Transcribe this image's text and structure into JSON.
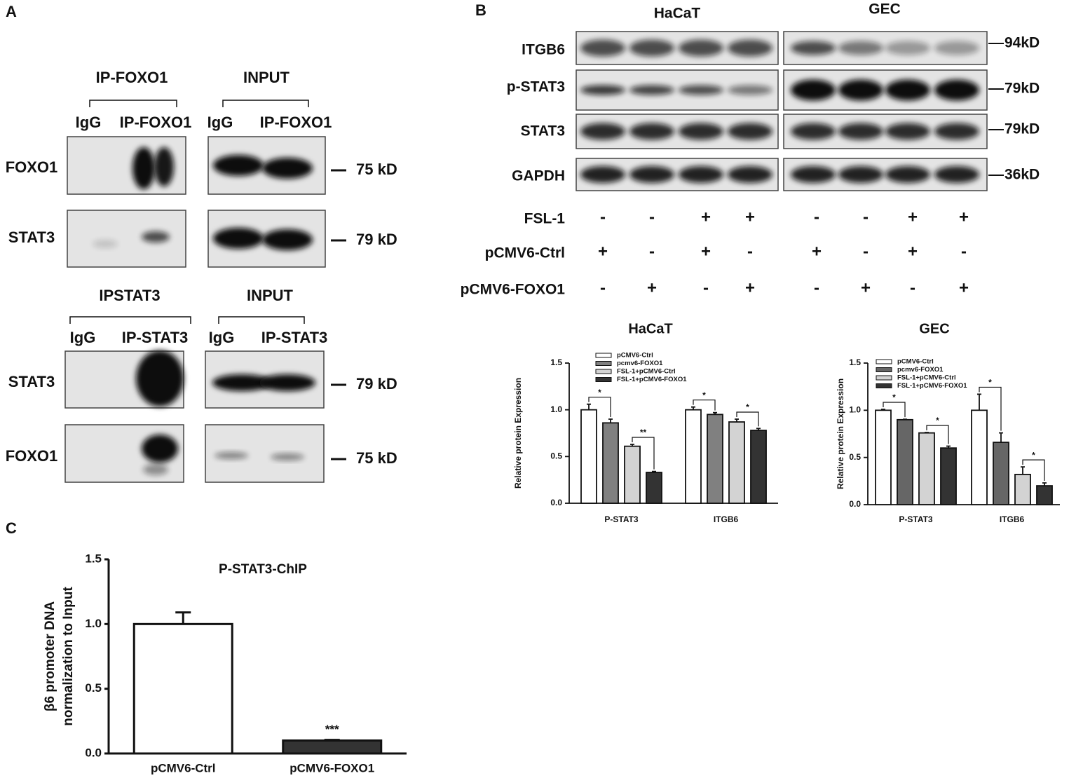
{
  "panel_a": {
    "label": "A",
    "groups": [
      {
        "ip_title": "IP-FOXO1",
        "input_title": "INPUT",
        "lanes": [
          "IgG",
          "IP-FOXO1",
          "IgG",
          "IP-FOXO1"
        ],
        "rows": [
          {
            "name": "FOXO1",
            "size": "75 kD"
          },
          {
            "name": "STAT3",
            "size": "79 kD"
          }
        ]
      },
      {
        "ip_title": "IPSTAT3",
        "input_title": "INPUT",
        "lanes": [
          "IgG",
          "IP-STAT3",
          "IgG",
          "IP-STAT3"
        ],
        "rows": [
          {
            "name": "STAT3",
            "size": "79 kD"
          },
          {
            "name": "FOXO1",
            "size": "75 kD"
          }
        ]
      }
    ]
  },
  "panel_b": {
    "label": "B",
    "cell_lines": [
      "HaCaT",
      "GEC"
    ],
    "rows": [
      {
        "name": "ITGB6",
        "size": "94kD"
      },
      {
        "name": "p-STAT3",
        "size": "79kD"
      },
      {
        "name": "STAT3",
        "size": "79kD"
      },
      {
        "name": "GAPDH",
        "size": "36kD"
      }
    ],
    "conditions": [
      {
        "name": "FSL-1",
        "signs": [
          "-",
          "-",
          "+",
          "+",
          "-",
          "-",
          "+",
          "+"
        ]
      },
      {
        "name": "pCMV6-Ctrl",
        "signs": [
          "+",
          "-",
          "+",
          "-",
          "+",
          "-",
          "+",
          "-"
        ]
      },
      {
        "name": "pCMV6-FOXO1",
        "signs": [
          "-",
          "+",
          "-",
          "+",
          "-",
          "+",
          "-",
          "+"
        ]
      }
    ]
  },
  "panel_c": {
    "label": "C"
  },
  "chart_data": [
    {
      "type": "bar",
      "title": "HaCaT",
      "ylabel": "Relative protein Expression",
      "categories": [
        "P-STAT3",
        "ITGB6"
      ],
      "series": [
        {
          "name": "pCMV6-Ctrl",
          "color": "#ffffff",
          "values": [
            1.0,
            1.0
          ],
          "errors": [
            0.06,
            0.03
          ]
        },
        {
          "name": "pcmv6-FOXO1",
          "color": "#808080",
          "values": [
            0.86,
            0.95
          ],
          "errors": [
            0.04,
            0.02
          ]
        },
        {
          "name": "FSL-1+pCMV6-Ctrl",
          "color": "#d3d3d3",
          "values": [
            0.61,
            0.87
          ],
          "errors": [
            0.02,
            0.03
          ]
        },
        {
          "name": "FSL-1+pCMV6-FOXO1",
          "color": "#333333",
          "values": [
            0.33,
            0.78
          ],
          "errors": [
            0.01,
            0.02
          ]
        }
      ],
      "ylim": [
        0,
        1.5
      ],
      "yticks": [
        {
          "value": 0,
          "label": "0.0"
        },
        {
          "value": 0.5,
          "label": "0.5"
        },
        {
          "value": 1,
          "label": "1.0"
        },
        {
          "value": 1.5,
          "label": "1.5"
        }
      ],
      "annotations": [
        "*",
        "**",
        "*",
        "*"
      ],
      "legend": "top-left"
    },
    {
      "type": "bar",
      "title": "GEC",
      "ylabel": "Relative protein Expression",
      "categories": [
        "P-STAT3",
        "ITGB6"
      ],
      "series": [
        {
          "name": "pCMV6-Ctrl",
          "color": "#ffffff",
          "values": [
            1.0,
            1.0
          ],
          "errors": [
            0.01,
            0.17
          ]
        },
        {
          "name": "pcmv6-FOXO1",
          "color": "#666666",
          "values": [
            0.9,
            0.66
          ],
          "errors": [
            0.005,
            0.1
          ]
        },
        {
          "name": "FSL-1+pCMV6-Ctrl",
          "color": "#d3d3d3",
          "values": [
            0.76,
            0.32
          ],
          "errors": [
            0.005,
            0.08
          ]
        },
        {
          "name": "FSL-1+pCMV6-FOXO1",
          "color": "#333333",
          "values": [
            0.6,
            0.2
          ],
          "errors": [
            0.02,
            0.03
          ]
        }
      ],
      "ylim": [
        0,
        1.5
      ],
      "yticks": [
        {
          "value": 0,
          "label": "0.0"
        },
        {
          "value": 0.5,
          "label": "0.5"
        },
        {
          "value": 1,
          "label": "1.0"
        },
        {
          "value": 1.5,
          "label": "1.5"
        }
      ],
      "annotations": [
        "*",
        "*",
        "*",
        "*"
      ],
      "legend": "top-left"
    },
    {
      "type": "bar",
      "title": "P-STAT3-ChIP",
      "ylabel": [
        "β6 promoter DNA",
        "normalization to Input"
      ],
      "categories": [
        "pCMV6-Ctrl",
        "pCMV6-FOXO1"
      ],
      "values": [
        1.0,
        0.1
      ],
      "errors": [
        0.09,
        0.005
      ],
      "colors": [
        "#ffffff",
        "#333333"
      ],
      "ylim": [
        0,
        1.5
      ],
      "yticks": [
        {
          "value": 0,
          "label": "0.0"
        },
        {
          "value": 0.5,
          "label": "0.5"
        },
        {
          "value": 1,
          "label": "1.0"
        },
        {
          "value": 1.5,
          "label": "1.5"
        }
      ],
      "annotations": [
        "***"
      ]
    }
  ]
}
